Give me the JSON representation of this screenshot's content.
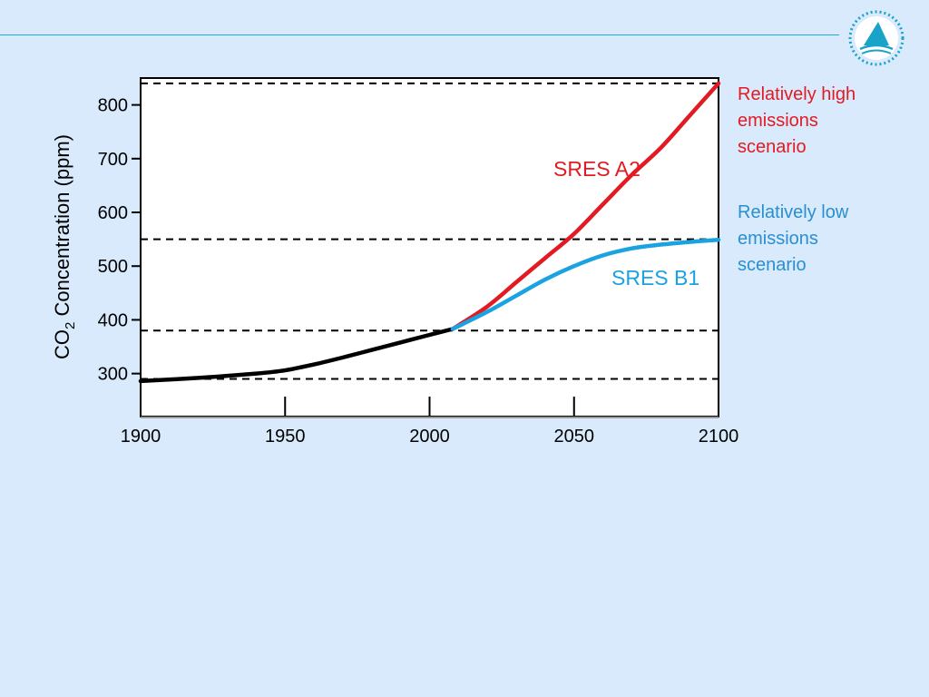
{
  "colors": {
    "background": "#d8eafc",
    "rule": "#22a7d6",
    "historical": "#000000",
    "a2": "#e21b23",
    "b1": "#1aa3e0",
    "label_high": "#e21b23",
    "label_low": "#2a8fd0"
  },
  "logo": {
    "icon": "ipcc-logo-icon"
  },
  "labels": {
    "high": "Relatively high\nemissions\nscenario",
    "low": "Relatively low\nemissions\nscenario"
  },
  "chart_data": {
    "type": "line",
    "ylabel_main": "CO",
    "ylabel_sub": "2",
    "ylabel_rest": " Concentration (ppm)",
    "xlabel": "",
    "x_ticks": [
      1900,
      1950,
      2000,
      2050,
      2100
    ],
    "y_ticks": [
      300,
      400,
      500,
      600,
      700,
      800
    ],
    "xlim": [
      1900,
      2100
    ],
    "ylim": [
      220,
      850
    ],
    "reference_lines": [
      290,
      380,
      550,
      840
    ],
    "grid": false,
    "series": [
      {
        "key": "historical",
        "x": [
          1900,
          1920,
          1940,
          1950,
          1960,
          1970,
          1980,
          1990,
          2000,
          2008
        ],
        "y": [
          286,
          292,
          300,
          306,
          317,
          330,
          344,
          358,
          372,
          383
        ]
      },
      {
        "key": "a2",
        "name": "SRES A2",
        "x": [
          2008,
          2020,
          2030,
          2040,
          2050,
          2060,
          2070,
          2080,
          2090,
          2100
        ],
        "y": [
          383,
          425,
          470,
          515,
          560,
          615,
          670,
          720,
          780,
          840
        ]
      },
      {
        "key": "b1",
        "name": "SRES B1",
        "x": [
          2008,
          2020,
          2030,
          2040,
          2050,
          2060,
          2070,
          2080,
          2090,
          2100
        ],
        "y": [
          383,
          415,
          445,
          475,
          500,
          520,
          533,
          540,
          545,
          549
        ]
      }
    ]
  }
}
